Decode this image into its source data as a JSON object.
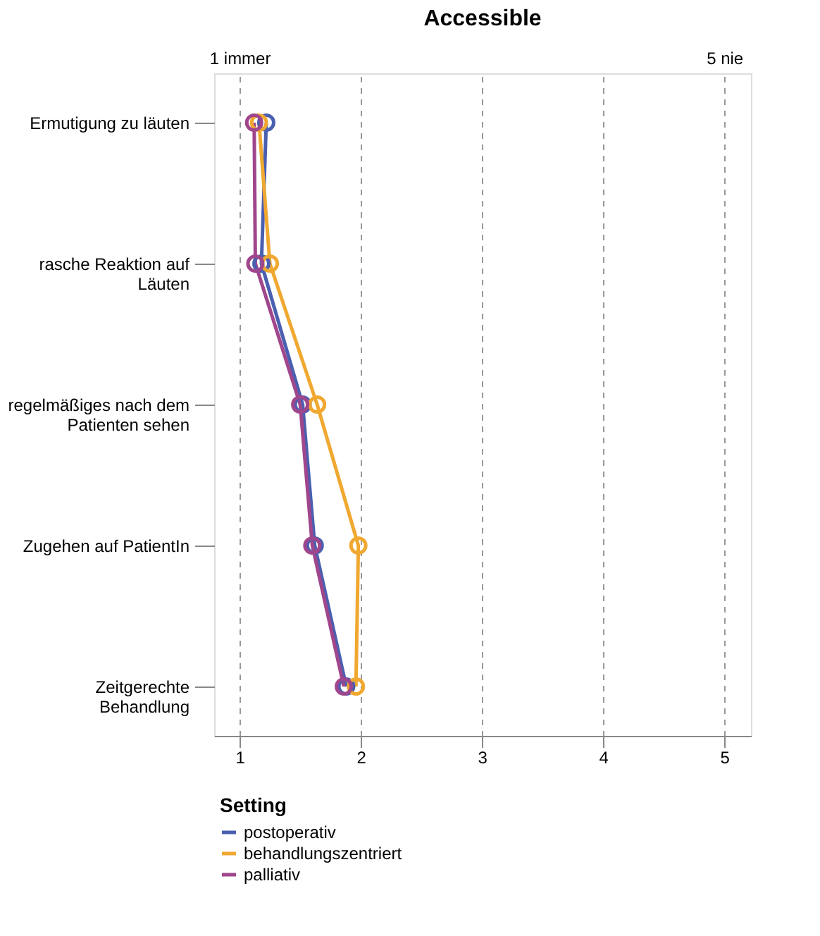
{
  "chart_data": {
    "type": "line",
    "title": "Accessible",
    "orientation": "horizontal",
    "categories": [
      "Ermutigung zu läuten",
      "rasche Reaktion auf Läuten",
      "regelmäßiges nach dem Patienten sehen",
      "Zugehen auf PatientIn",
      "Zeitgerechte Behandlung"
    ],
    "series": [
      {
        "name": "postoperativ",
        "color": "#4a5fb0",
        "values": [
          1.22,
          1.18,
          1.52,
          1.62,
          1.88
        ]
      },
      {
        "name": "behandlungszentriert",
        "color": "#f0a830",
        "values": [
          1.16,
          1.25,
          1.64,
          1.98,
          1.96
        ]
      },
      {
        "name": "palliativ",
        "color": "#a0468c",
        "values": [
          1.12,
          1.13,
          1.5,
          1.6,
          1.86
        ]
      }
    ],
    "xlim": [
      0.79,
      5.22
    ],
    "xticks": [
      1,
      2,
      3,
      4,
      5
    ],
    "x2lim": [
      0.79,
      5.22
    ],
    "x2ticks": [
      {
        "value": 1,
        "label": "1 immer"
      },
      {
        "value": 5,
        "label": "5 nie"
      }
    ],
    "legend_title": "Setting",
    "legend": "bottom",
    "grid": "x",
    "marker": "circle",
    "line_style": "solid"
  }
}
